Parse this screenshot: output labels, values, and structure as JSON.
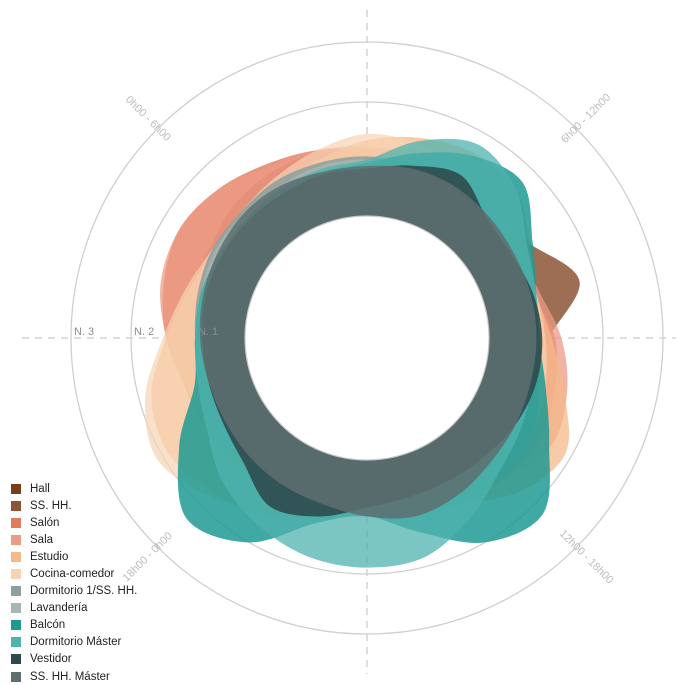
{
  "chart_data": {
    "type": "radial-area",
    "rings": [
      "N. 1",
      "N. 2",
      "N. 3"
    ],
    "quarters": [
      "0h00 - 6h00",
      "6h00 - 12h00",
      "12h00 - 18h00",
      "18h00 - 0h00"
    ],
    "legend_position": "bottom-left",
    "series": [
      {
        "name": "Hall",
        "color": "#7a3d1a",
        "opacity": 0.9,
        "values": [
          1.2,
          1.15,
          1.05,
          0.95,
          1.15,
          0.95,
          0.85,
          0.95,
          1.2,
          1.1,
          1.05,
          1.0,
          0.95,
          1.0,
          1.05,
          1.15,
          1.2,
          1.25,
          1.25,
          1.2,
          1.15,
          1.25,
          1.3,
          1.3
        ]
      },
      {
        "name": "SS. HH.",
        "color": "#8c5336",
        "opacity": 0.85,
        "values": [
          1.0,
          0.95,
          0.85,
          0.95,
          1.25,
          1.75,
          1.15,
          0.95,
          1.0,
          0.9,
          0.85,
          0.85,
          0.85,
          0.8,
          0.85,
          0.9,
          0.95,
          1.0,
          1.05,
          1.1,
          1.05,
          1.0,
          1.0,
          1.0
        ]
      },
      {
        "name": "Salón",
        "color": "#e37a5e",
        "opacity": 0.8,
        "values": [
          1.25,
          1.35,
          1.45,
          1.2,
          1.05,
          1.0,
          1.25,
          1.35,
          1.45,
          1.4,
          1.2,
          1.05,
          1.0,
          0.95,
          1.0,
          1.05,
          1.15,
          1.25,
          1.45,
          1.6,
          1.7,
          1.6,
          1.45,
          1.35
        ]
      },
      {
        "name": "Sala",
        "color": "#ec9b85",
        "opacity": 0.75,
        "values": [
          1.3,
          1.25,
          1.1,
          1.05,
          1.05,
          1.1,
          1.35,
          1.55,
          1.65,
          1.4,
          1.2,
          1.05,
          1.0,
          1.05,
          1.1,
          1.05,
          1.1,
          1.25,
          1.45,
          1.65,
          1.7,
          1.6,
          1.4,
          1.35
        ]
      },
      {
        "name": "Estudio",
        "color": "#f4b989",
        "opacity": 0.75,
        "values": [
          1.4,
          1.55,
          1.65,
          1.6,
          1.25,
          1.05,
          1.2,
          1.5,
          1.9,
          1.7,
          1.3,
          1.1,
          1.05,
          1.2,
          1.5,
          1.7,
          1.9,
          1.8,
          1.45,
          1.2,
          1.05,
          1.05,
          1.1,
          1.2
        ]
      },
      {
        "name": "Cocina-comedor",
        "color": "#f7d3b3",
        "opacity": 0.7,
        "values": [
          1.5,
          1.45,
          1.35,
          1.2,
          1.1,
          1.05,
          1.1,
          1.2,
          1.3,
          1.25,
          1.15,
          1.1,
          1.1,
          1.2,
          1.45,
          1.8,
          2.1,
          1.9,
          1.5,
          1.25,
          1.1,
          1.1,
          1.2,
          1.35
        ]
      },
      {
        "name": "Dormitorio 1/SS. HH.",
        "color": "#8a9f9e",
        "opacity": 0.85,
        "values": [
          1.15,
          1.1,
          1.1,
          1.05,
          1.0,
          0.95,
          0.9,
          0.9,
          0.85,
          0.85,
          0.8,
          0.8,
          0.8,
          0.85,
          0.85,
          0.9,
          0.95,
          1.0,
          1.0,
          1.05,
          1.1,
          1.1,
          1.15,
          1.15
        ]
      },
      {
        "name": "Lavandería",
        "color": "#a9b5b3",
        "opacity": 0.8,
        "values": [
          1.1,
          1.05,
          1.0,
          0.95,
          0.9,
          0.9,
          0.95,
          1.1,
          1.3,
          1.35,
          1.2,
          1.0,
          0.95,
          0.9,
          0.85,
          0.85,
          0.9,
          0.95,
          1.0,
          1.0,
          1.05,
          1.05,
          1.05,
          1.1
        ]
      },
      {
        "name": "Balcón",
        "color": "#1f9a93",
        "opacity": 0.85,
        "values": [
          1.05,
          1.3,
          1.6,
          1.75,
          1.3,
          1.05,
          1.0,
          1.2,
          1.6,
          2.2,
          2.0,
          1.45,
          1.1,
          1.3,
          2.0,
          2.3,
          1.7,
          1.1,
          1.0,
          1.0,
          0.95,
          0.95,
          1.0,
          1.0
        ]
      },
      {
        "name": "Dormitorio Máster",
        "color": "#4fb3ad",
        "opacity": 0.75,
        "values": [
          1.1,
          1.5,
          1.8,
          1.6,
          1.2,
          1.05,
          1.0,
          1.0,
          1.1,
          1.25,
          1.55,
          1.85,
          1.9,
          1.85,
          1.7,
          1.5,
          1.2,
          1.05,
          1.0,
          1.0,
          0.95,
          0.95,
          1.0,
          1.05
        ]
      },
      {
        "name": "Vestidor",
        "color": "#2f4a4d",
        "opacity": 0.9,
        "values": [
          0.95,
          1.1,
          1.25,
          0.95,
          0.9,
          1.0,
          1.05,
          1.05,
          1.0,
          0.9,
          0.85,
          0.85,
          0.95,
          1.2,
          1.35,
          1.05,
          0.9,
          0.85,
          0.85,
          0.9,
          0.9,
          0.9,
          0.9,
          0.95
        ]
      },
      {
        "name": "SS. HH. Máster",
        "color": "#5e6f70",
        "opacity": 0.85,
        "values": [
          1.0,
          1.05,
          1.05,
          1.0,
          0.95,
          0.95,
          0.95,
          0.95,
          1.0,
          1.05,
          1.15,
          1.2,
          1.1,
          1.0,
          0.95,
          0.9,
          0.85,
          0.85,
          0.9,
          0.95,
          1.0,
          1.05,
          1.05,
          1.0
        ]
      }
    ]
  }
}
